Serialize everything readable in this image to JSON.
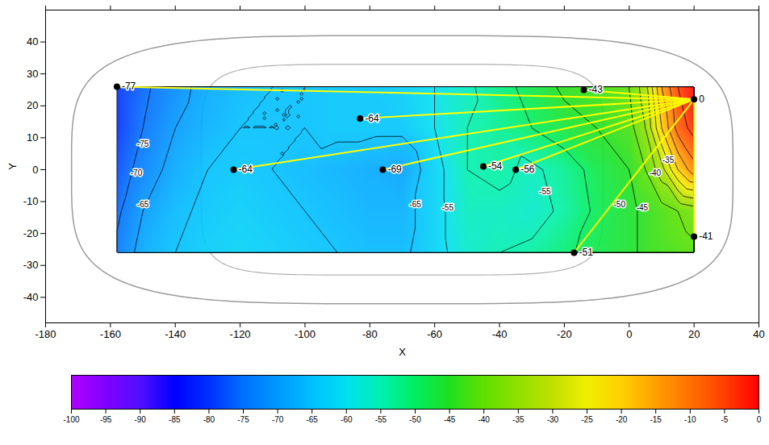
{
  "chart_data": {
    "type": "contour",
    "x_label": "X",
    "y_label": "Y",
    "xlim": [
      -180,
      40
    ],
    "xticks": [
      -180,
      -160,
      -140,
      -120,
      -100,
      -80,
      -60,
      -40,
      -20,
      0,
      20,
      40
    ],
    "ylim": [
      -48,
      50
    ],
    "yticks": [
      -40,
      -30,
      -20,
      -10,
      0,
      10,
      20,
      30,
      40
    ],
    "cells": {
      "x": [
        -158,
        -150,
        -140,
        -130,
        -120,
        -110,
        -100,
        -90,
        -80,
        -70,
        -60,
        -50,
        -40,
        -30,
        -20,
        -10,
        0,
        5,
        10,
        15,
        20
      ],
      "y": [
        -26,
        -13,
        0,
        13,
        26
      ],
      "values": [
        [
          -74,
          -68,
          -65,
          -63,
          -62,
          -63,
          -64,
          -65,
          -66,
          -66,
          -62,
          -57,
          -55,
          -54,
          -51,
          -48,
          -46,
          -44,
          -43,
          -42,
          -41
        ],
        [
          -76,
          -70,
          -66,
          -64,
          -63,
          -64,
          -65,
          -66,
          -67,
          -67,
          -62,
          -56,
          -56,
          -57,
          -54,
          -49,
          -46,
          -44,
          -42,
          -40,
          -38
        ],
        [
          -78,
          -73,
          -68,
          -65,
          -64,
          -65,
          -66,
          -67,
          -68,
          -69,
          -62,
          -55,
          -54,
          -56,
          -53,
          -48,
          -45,
          -40,
          -32,
          -20,
          -12
        ],
        [
          -80,
          -75,
          -70,
          -67,
          -65,
          -65,
          -65,
          -64,
          -64,
          -64,
          -60,
          -55,
          -53,
          -50,
          -47,
          -45,
          -42,
          -35,
          -20,
          -8,
          -3
        ],
        [
          -80,
          -76,
          -72,
          -68,
          -66,
          -65,
          -65,
          -64,
          -64,
          -63,
          -60,
          -56,
          -52,
          -48,
          -44,
          -43,
          -40,
          -32,
          -15,
          -5,
          0
        ]
      ]
    },
    "contour_levels": [
      -80,
      -75,
      -70,
      -65,
      -60,
      -55,
      -50,
      -45,
      -40,
      -35,
      -30,
      -25,
      -20,
      -15,
      -10,
      -5
    ],
    "contour_labels": [
      {
        "x": -150,
        "y": 8,
        "value": -75
      },
      {
        "x": -152,
        "y": -1,
        "value": -70
      },
      {
        "x": -150,
        "y": -11,
        "value": -65
      },
      {
        "x": -66,
        "y": -11,
        "value": -65
      },
      {
        "x": -56,
        "y": -12,
        "value": -55
      },
      {
        "x": -26,
        "y": -7,
        "value": -55
      },
      {
        "x": -3,
        "y": -11,
        "value": -50
      },
      {
        "x": 4,
        "y": -12,
        "value": -45
      },
      {
        "x": 8,
        "y": -1,
        "value": -40
      },
      {
        "x": 12,
        "y": 3,
        "value": -35
      }
    ],
    "points": {
      "x": [
        -158,
        -83,
        -122,
        -76,
        -45,
        -35,
        -14,
        20,
        20,
        -17
      ],
      "y": [
        26,
        16,
        0,
        0,
        1,
        0,
        25,
        22,
        -21,
        -26
      ],
      "values": [
        -77,
        -64,
        -64,
        -69,
        -54,
        -56,
        -43,
        0,
        -41,
        -51
      ],
      "color": "#000000"
    },
    "rays": {
      "from": [
        20,
        22
      ],
      "color": "#ffff00"
    },
    "colorbar": {
      "range": [
        -100,
        0
      ],
      "ticks": [
        -100,
        -95,
        -90,
        -85,
        -80,
        -75,
        -70,
        -65,
        -60,
        -55,
        -50,
        -45,
        -40,
        -35,
        -30,
        -25,
        -20,
        -15,
        -10,
        -5,
        0
      ]
    },
    "grid": false
  }
}
